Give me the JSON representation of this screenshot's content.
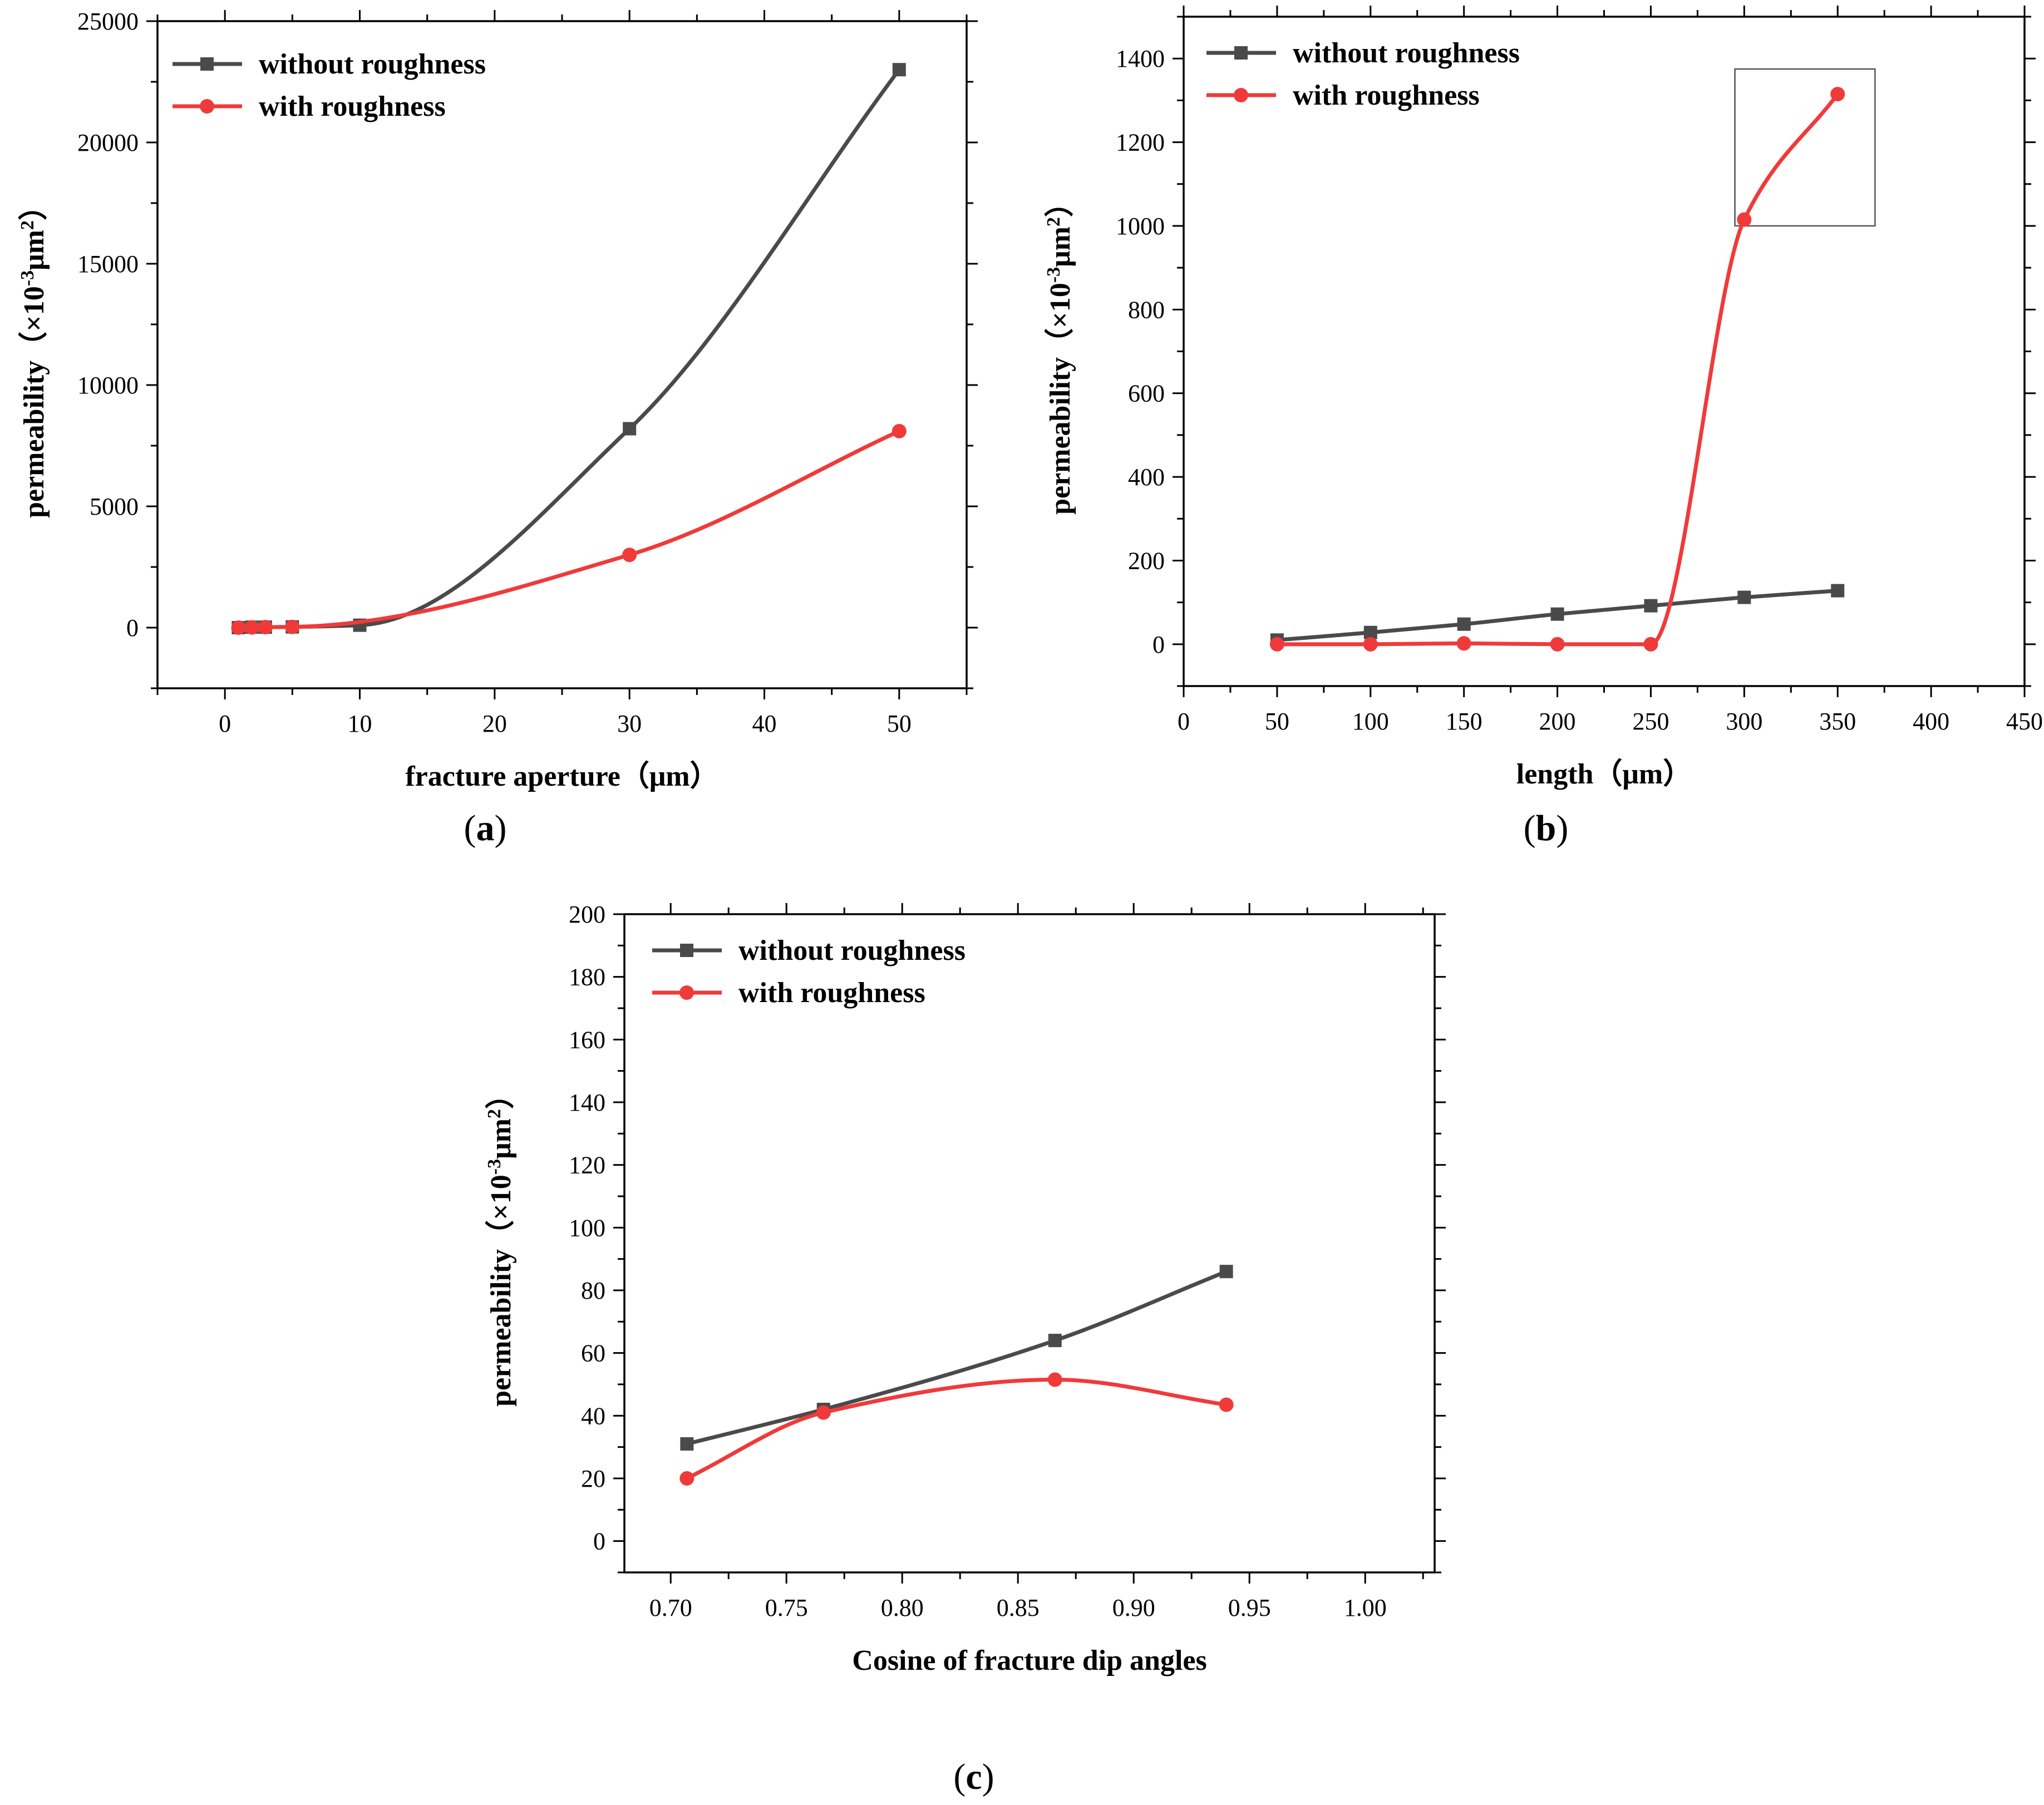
{
  "colors": {
    "series0": "#4a4a4a",
    "series1": "#f03a3a"
  },
  "chart_data": [
    {
      "type": "line",
      "panel_label": "a",
      "xlabel": "fracture aperture（μm）",
      "ylabel_main": "permeability（×10",
      "ylabel_exp": "-3",
      "ylabel_unit": "μm",
      "ylabel_unit_exp": "2",
      "ylabel_close": "）",
      "xlim": [
        -5,
        55
      ],
      "ylim": [
        -2500,
        25000
      ],
      "xticks": [
        0,
        10,
        20,
        30,
        40,
        50
      ],
      "xtick_labels": [
        "0",
        "10",
        "20",
        "30",
        "40",
        "50"
      ],
      "yticks": [
        0,
        5000,
        10000,
        15000,
        20000,
        25000
      ],
      "ytick_labels": [
        "0",
        "5000",
        "10000",
        "15000",
        "20000",
        "25000"
      ],
      "smooth": true,
      "series": [
        {
          "name": "without roughness",
          "marker": "square",
          "x": [
            1,
            2,
            3,
            5,
            10,
            30,
            50
          ],
          "y": [
            0,
            20,
            20,
            30,
            100,
            8200,
            23000
          ]
        },
        {
          "name": "with roughness",
          "marker": "circle",
          "x": [
            1,
            2,
            3,
            5,
            30,
            50
          ],
          "y": [
            0,
            10,
            20,
            30,
            3000,
            8100
          ]
        }
      ]
    },
    {
      "type": "line",
      "panel_label": "b",
      "xlabel": "length（μm）",
      "ylabel_main": "permeability（×10",
      "ylabel_exp": "-3",
      "ylabel_unit": "μm",
      "ylabel_unit_exp": "2",
      "ylabel_close": "）",
      "xlim": [
        0,
        450
      ],
      "ylim": [
        -100,
        1500
      ],
      "xticks": [
        0,
        50,
        100,
        150,
        200,
        250,
        300,
        350,
        400,
        450
      ],
      "xtick_labels": [
        "0",
        "50",
        "100",
        "150",
        "200",
        "250",
        "300",
        "350",
        "400",
        "450"
      ],
      "yticks": [
        0,
        200,
        400,
        600,
        800,
        1000,
        1200,
        1400
      ],
      "ytick_labels": [
        "0",
        "200",
        "400",
        "600",
        "800",
        "1000",
        "1200",
        "1400"
      ],
      "smooth": true,
      "highlight_box": {
        "x": [
          295,
          370
        ],
        "y": [
          1000,
          1375
        ]
      },
      "series": [
        {
          "name": "without roughness",
          "marker": "square",
          "x": [
            50,
            100,
            150,
            200,
            250,
            300,
            350
          ],
          "y": [
            10,
            28,
            48,
            72,
            92,
            112,
            128
          ]
        },
        {
          "name": "with roughness",
          "marker": "circle",
          "x": [
            50,
            100,
            150,
            200,
            250,
            300,
            350
          ],
          "y": [
            0,
            0,
            2,
            0,
            0,
            1015,
            1315
          ]
        }
      ]
    },
    {
      "type": "line",
      "panel_label": "c",
      "xlabel": "Cosine of fracture dip angles",
      "ylabel_main": "permeability（×10",
      "ylabel_exp": "-3",
      "ylabel_unit": "μm",
      "ylabel_unit_exp": "2",
      "ylabel_close": "）",
      "xlim": [
        0.68,
        1.03
      ],
      "ylim": [
        -10,
        200
      ],
      "xticks": [
        0.7,
        0.75,
        0.8,
        0.85,
        0.9,
        0.95,
        1.0
      ],
      "xtick_labels": [
        "0.70",
        "0.75",
        "0.80",
        "0.85",
        "0.90",
        "0.95",
        "1.00"
      ],
      "yticks": [
        0,
        20,
        40,
        60,
        80,
        100,
        120,
        140,
        160,
        180,
        200
      ],
      "ytick_labels": [
        "0",
        "20",
        "40",
        "60",
        "80",
        "100",
        "120",
        "140",
        "160",
        "180",
        "200"
      ],
      "smooth": true,
      "series": [
        {
          "name": "without roughness",
          "marker": "square",
          "x": [
            0.707,
            0.766,
            0.866,
            0.94
          ],
          "y": [
            31,
            42,
            64,
            86
          ]
        },
        {
          "name": "with roughness",
          "marker": "circle",
          "x": [
            0.707,
            0.766,
            0.866,
            0.94
          ],
          "y": [
            20,
            41,
            51.5,
            43.5
          ]
        }
      ]
    }
  ]
}
